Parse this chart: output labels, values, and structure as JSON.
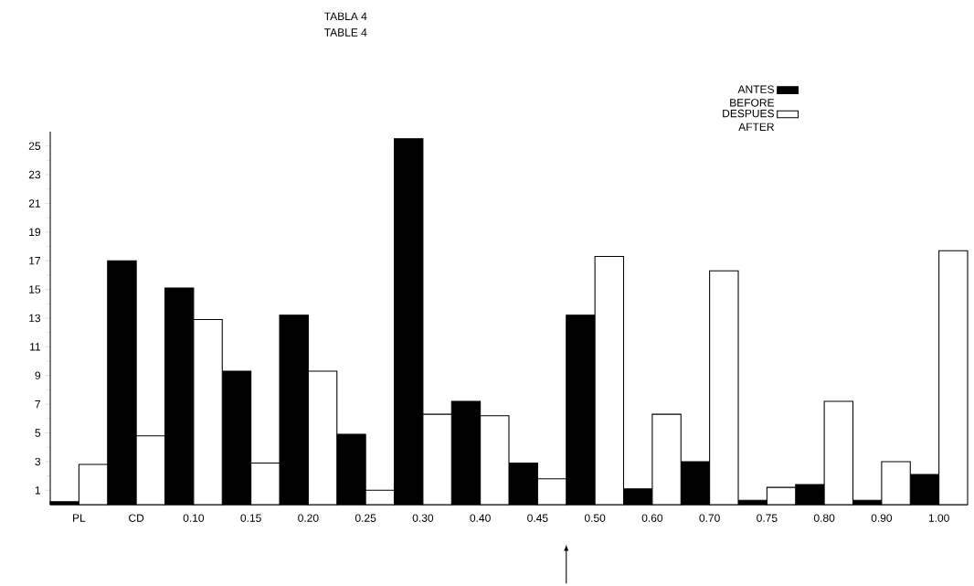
{
  "chart_data": {
    "type": "bar",
    "title": "TABLA 4",
    "subtitle": "TABLE 4",
    "categories": [
      "PL",
      "CD",
      "0.10",
      "0.15",
      "0.20",
      "0.25",
      "0.30",
      "0.40",
      "0.45",
      "0.50",
      "0.60",
      "0.70",
      "0.75",
      "0.80",
      "0.90",
      "1.00"
    ],
    "series": [
      {
        "name": "ANTES BEFORE",
        "color": "#000000",
        "values": [
          0.2,
          17.0,
          15.1,
          9.3,
          13.2,
          4.9,
          25.5,
          7.2,
          2.9,
          13.2,
          1.1,
          3.0,
          0.3,
          1.4,
          0.3,
          2.1
        ]
      },
      {
        "name": "DESPUES AFTER",
        "color": "#ffffff",
        "values": [
          2.8,
          4.8,
          12.9,
          2.9,
          9.3,
          1.0,
          6.3,
          6.2,
          1.8,
          17.3,
          6.3,
          16.3,
          1.2,
          7.2,
          3.0,
          17.7
        ]
      }
    ],
    "ylim": [
      0,
      26
    ],
    "yticks": [
      1,
      3,
      5,
      7,
      9,
      11,
      13,
      15,
      17,
      19,
      21,
      23,
      25
    ],
    "grid": false,
    "legend": "top right"
  }
}
